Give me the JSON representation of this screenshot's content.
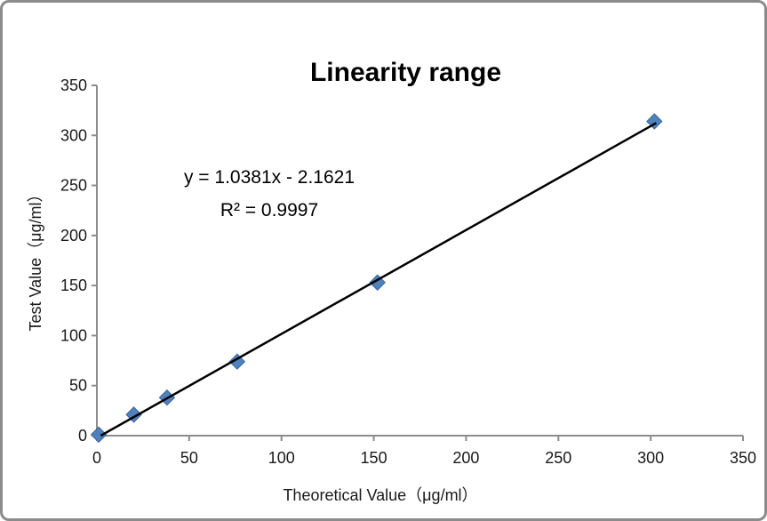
{
  "chart_data": {
    "type": "scatter",
    "title": "Linearity range",
    "xlabel": "Theoretical Value（μg/ml）",
    "ylabel": "Test  Value（μg/ml）",
    "xlim": [
      0,
      350
    ],
    "ylim": [
      0,
      350
    ],
    "xticks": [
      0,
      50,
      100,
      150,
      200,
      250,
      300,
      350
    ],
    "yticks": [
      0,
      50,
      100,
      150,
      200,
      250,
      300,
      350
    ],
    "grid": false,
    "legend": null,
    "points": [
      {
        "x": 1,
        "y": 1
      },
      {
        "x": 20,
        "y": 21
      },
      {
        "x": 38,
        "y": 38
      },
      {
        "x": 76,
        "y": 74
      },
      {
        "x": 152,
        "y": 153
      },
      {
        "x": 302,
        "y": 314
      }
    ],
    "trendline": {
      "equation": "y = 1.0381x - 2.1621",
      "r_squared": "R² = 0.9997",
      "slope": 1.0381,
      "intercept": -2.1621,
      "x_start": 2.1,
      "x_end": 303
    },
    "marker": {
      "shape": "diamond",
      "fill": "#4f81bd",
      "stroke": "#3a6596",
      "size": 17
    },
    "colors": {
      "axis": "#8c8c8c",
      "trendline": "#000000",
      "tick_label": "#1a1a1a",
      "frame_border": "#8b8b8b"
    }
  }
}
